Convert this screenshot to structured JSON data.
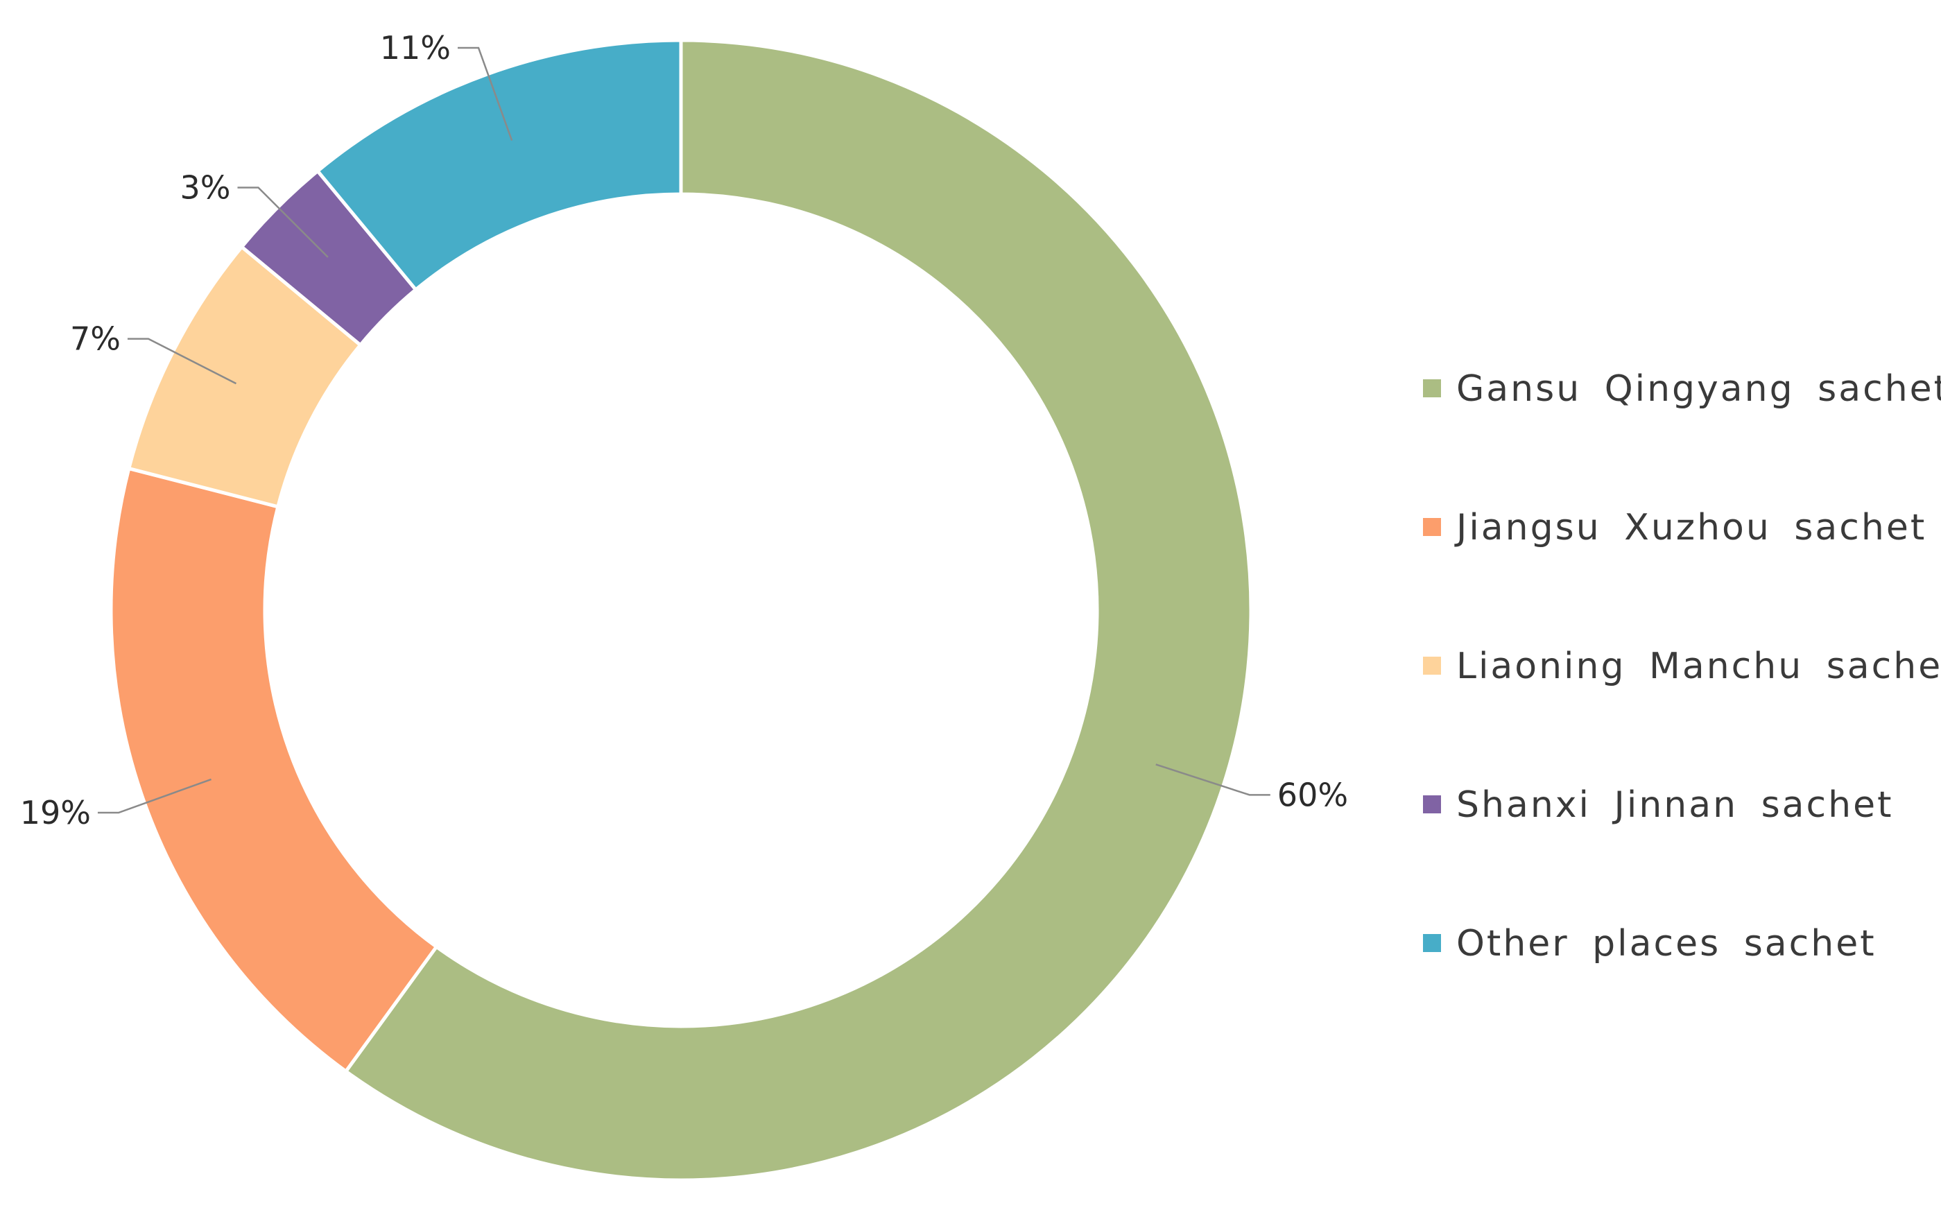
{
  "chart_data": {
    "type": "pie",
    "variant": "donut",
    "title": "",
    "legend_position": "right",
    "series": [
      {
        "name": "Gansu Qingyang sachet",
        "value": 60,
        "label": "60%",
        "color": "#abbd83"
      },
      {
        "name": "Jiangsu Xuzhou sachet",
        "value": 19,
        "label": "19%",
        "color": "#fc9e6c"
      },
      {
        "name": "Liaoning Manchu sachet",
        "value": 7,
        "label": "7%",
        "color": "#fed39b"
      },
      {
        "name": "Shanxi Jinnan sachet",
        "value": 3,
        "label": "3%",
        "color": "#8063a4"
      },
      {
        "name": "Other places sachet",
        "value": 11,
        "label": "11%",
        "color": "#47adc8"
      }
    ]
  }
}
